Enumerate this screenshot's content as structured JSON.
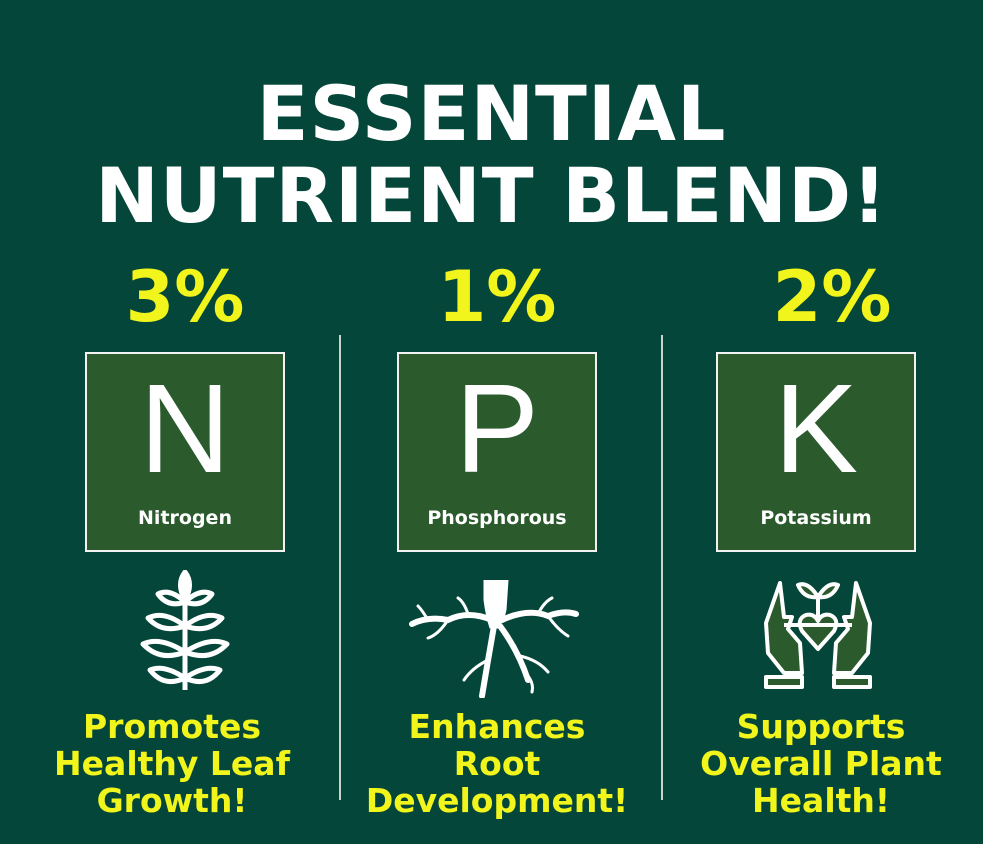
{
  "title": {
    "line1": "ESSENTIAL",
    "line2": "NUTRIENT BLEND!"
  },
  "nutrients": [
    {
      "percent": "3%",
      "symbol": "N",
      "name": "Nitrogen",
      "icon": "plant-icon",
      "caption": [
        "Promotes",
        "Healthy Leaf",
        "Growth!"
      ]
    },
    {
      "percent": "1%",
      "symbol": "P",
      "name": "Phosphorous",
      "icon": "roots-icon",
      "caption": [
        "Enhances",
        "Root",
        "Development!"
      ]
    },
    {
      "percent": "2%",
      "symbol": "K",
      "name": "Potassium",
      "icon": "hands-heart-plant-icon",
      "caption": [
        "Supports",
        "Overall Plant",
        "Health!"
      ]
    }
  ],
  "colors": {
    "background": "#04473a",
    "box": "#2b5a2d",
    "accent": "#f2f51c"
  }
}
